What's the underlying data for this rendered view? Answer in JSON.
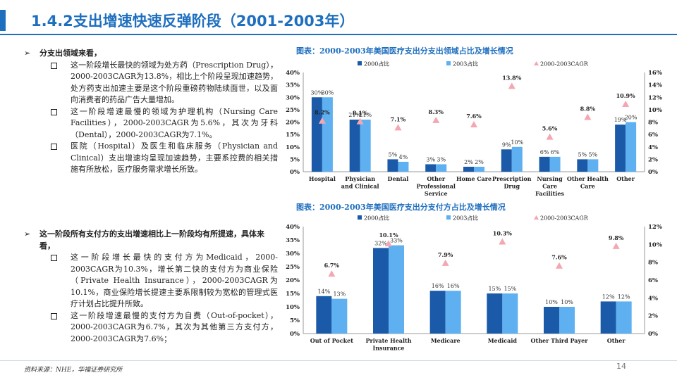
{
  "title": "1.4.2支出增速快速反弹阶段（2001-2003年）",
  "section1": {
    "heading": "分支出领域来看，",
    "items": [
      "这一阶段增长最快的领域为处方药（Prescription Drug），2000-2003CAGR为13.8%，相比上个阶段呈现加速趋势，处方药支出加速主要是这个阶段重磅药物陆续面世，以及面向消费者的药品广告大量增加。",
      "这一阶段增速最慢的领域为护理机构（Nursing Care Facilities），2000-2003CAGR为5.6%，其次为牙科（Dental），2000-2003CAGR为7.1%。",
      "医院（Hospital）及医生和临床服务（Physician and Clinical）支出增速均呈现加速趋势，主要系控费的相关措施有所放松，医疗服务需求增长所致。"
    ]
  },
  "section2": {
    "heading": "这一阶段所有支付方的支出增速相比上一阶段均有所提速，具体来看，",
    "items": [
      "这一阶段增长最快的支付方为Medicaid，2000-2003CAGR为10.3%，增长第二快的支付方为商业保险（Private Health Insurance），2000-2003CAGR为10.1%，商业保险增长提速主要系限制较为宽松的管理式医疗计划占比提升所致。",
      "这一阶段增速最慢的支付方为自费（Out-of-pocket），2000-2003CAGR为6.7%，其次为其他第三方支付方，2000-2003CAGR为7.6%；"
    ]
  },
  "colors": {
    "title": "#1f6fbf",
    "series2000": "#1a5aa8",
    "series2003": "#5eb0f0",
    "cagr": "#f4a6b2"
  },
  "chart_data": [
    {
      "type": "bar",
      "title": "图表：2000-2003年美国医疗支出分支出领域占比及增长情况",
      "categories": [
        "Hospital",
        "Physician and Clinical",
        "Dental",
        "Other Professional Service",
        "Home Care",
        "Prescription Drug",
        "Nursing Care Facilities",
        "Other Health Care",
        "Other"
      ],
      "category_lines": [
        [
          "Hospital"
        ],
        [
          "Physician",
          "and Clinical"
        ],
        [
          "Dental"
        ],
        [
          "Other",
          "Professional",
          "Service"
        ],
        [
          "Home Care"
        ],
        [
          "Prescription",
          "Drug"
        ],
        [
          "Nursing",
          "Care",
          "Facilities"
        ],
        [
          "Other Health",
          "Care"
        ],
        [
          "Other"
        ]
      ],
      "series": [
        {
          "name": "2000占比",
          "values": [
            30,
            21,
            5,
            3,
            2,
            9,
            6,
            5,
            19
          ],
          "labels": [
            "30%",
            "21%",
            "5%",
            "3%",
            "2%",
            "9%",
            "6%",
            "5%",
            "19%"
          ]
        },
        {
          "name": "2003占比",
          "values": [
            30,
            21,
            4,
            3,
            2,
            10,
            6,
            5,
            20
          ],
          "labels": [
            "30%",
            "21%",
            "4%",
            "3%",
            "2%",
            "10%",
            "6%",
            "5%",
            "20%"
          ]
        }
      ],
      "cagr": {
        "name": "2000-2003CAGR",
        "values": [
          8.2,
          8.1,
          7.1,
          8.3,
          7.6,
          13.8,
          5.6,
          8.8,
          10.9
        ],
        "labels": [
          "8.2%",
          "8.1%",
          "7.1%",
          "8.3%",
          "7.6%",
          "13.8%",
          "5.6%",
          "8.8%",
          "10.9%"
        ]
      },
      "left_ticks": [
        "0%",
        "5%",
        "10%",
        "15%",
        "20%",
        "25%",
        "30%",
        "35%",
        "40%"
      ],
      "right_ticks": [
        "0%",
        "2%",
        "4%",
        "6%",
        "8%",
        "10%",
        "12%",
        "14%",
        "16%"
      ],
      "ylim": [
        0,
        40
      ],
      "y2lim": [
        0,
        16
      ],
      "legend": "top"
    },
    {
      "type": "bar",
      "title": "图表：2000-2003年美国医疗支出分支付方占比及增长情况",
      "categories": [
        "Out of Pocket",
        "Private Health Insurance",
        "Medicare",
        "Medicaid",
        "Other Third Payer",
        "Other"
      ],
      "category_lines": [
        [
          "Out of Pocket"
        ],
        [
          "Private Health",
          "Insurance"
        ],
        [
          "Medicare"
        ],
        [
          "Medicaid"
        ],
        [
          "Other Third Payer"
        ],
        [
          "Other"
        ]
      ],
      "series": [
        {
          "name": "2000占比",
          "values": [
            14,
            32,
            16,
            15,
            10,
            12
          ],
          "labels": [
            "14%",
            "32%",
            "16%",
            "15%",
            "10%",
            "12%"
          ]
        },
        {
          "name": "2003占比",
          "values": [
            13,
            33,
            16,
            15,
            10,
            12
          ],
          "labels": [
            "13%",
            "33%",
            "16%",
            "15%",
            "10%",
            "12%"
          ]
        }
      ],
      "cagr": {
        "name": "2000-2003CAGR",
        "values": [
          6.7,
          10.1,
          7.9,
          10.3,
          7.6,
          9.8
        ],
        "labels": [
          "6.7%",
          "10.1%",
          "7.9%",
          "10.3%",
          "7.6%",
          "9.8%"
        ]
      },
      "left_ticks": [
        "0%",
        "5%",
        "10%",
        "15%",
        "20%",
        "25%",
        "30%",
        "35%",
        "40%"
      ],
      "right_ticks": [
        "0%",
        "2%",
        "4%",
        "6%",
        "8%",
        "10%",
        "12%"
      ],
      "ylim": [
        0,
        40
      ],
      "y2lim": [
        0,
        12
      ],
      "legend": "top"
    }
  ],
  "footer": {
    "source": "资料来源：NHE，华福证券研究所",
    "page": "14"
  }
}
